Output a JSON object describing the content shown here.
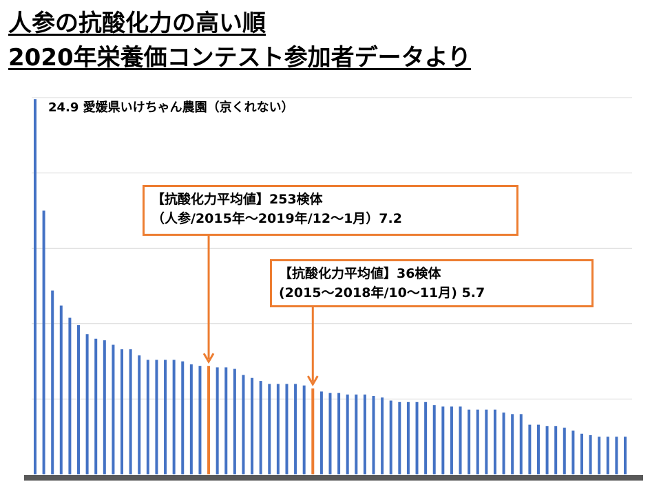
{
  "title_line1": "人参の抗酸化力の高い順",
  "title_line2": "2020年栄養価コンテスト参加者データより",
  "top_annotation": "24.9 愛媛県いけちゃん農園（京くれない）",
  "callouts": [
    {
      "line1": "【抗酸化力平均値】253検体",
      "line2": "（人参/2015年～2019年/12～1月）7.2",
      "bar_index": 20
    },
    {
      "line1": "【抗酸化力平均値】36検体",
      "line2": "(2015～2018年/10～11月) 5.7",
      "bar_index": 32
    }
  ],
  "colors": {
    "bar": "#4472C4",
    "highlight": "#ED7D31",
    "grid": "#D9D9D9",
    "axis": "#595959"
  },
  "chart_data": {
    "type": "bar",
    "ylim": [
      0,
      25
    ],
    "grid": true,
    "values": [
      24.9,
      17.5,
      12.2,
      11.2,
      10.4,
      9.9,
      9.3,
      9.0,
      8.9,
      8.6,
      8.3,
      8.3,
      7.9,
      7.6,
      7.6,
      7.6,
      7.6,
      7.5,
      7.3,
      7.2,
      7.2,
      7.1,
      7.1,
      7.0,
      6.6,
      6.4,
      6.2,
      6.0,
      6.0,
      6.0,
      6.0,
      5.9,
      5.7,
      5.5,
      5.4,
      5.4,
      5.3,
      5.3,
      5.3,
      5.2,
      5.1,
      4.9,
      4.8,
      4.8,
      4.8,
      4.8,
      4.6,
      4.5,
      4.5,
      4.5,
      4.3,
      4.3,
      4.3,
      4.3,
      4.1,
      4.0,
      4.0,
      3.3,
      3.3,
      3.2,
      3.2,
      3.1,
      2.9,
      2.7,
      2.6,
      2.5,
      2.5,
      2.5,
      2.5
    ],
    "highlight_indices": [
      20,
      32
    ]
  }
}
